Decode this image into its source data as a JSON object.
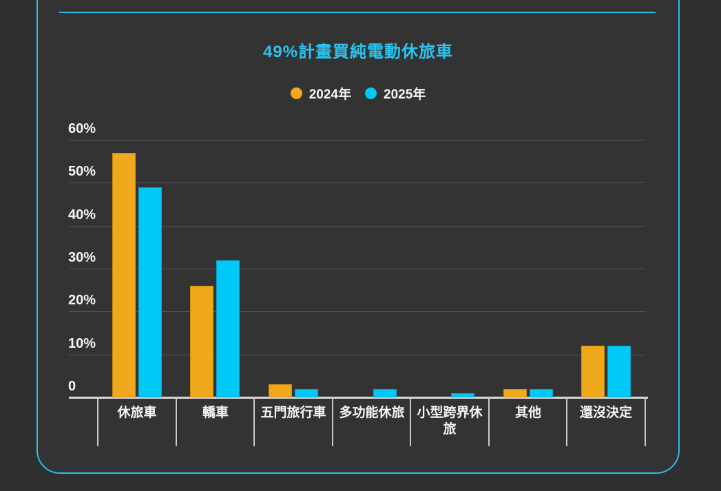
{
  "title": "49%計畫買純電動休旅車",
  "colors": {
    "background": "#2f2f2f",
    "panel": "#333333",
    "accent_border": "#29bfe9",
    "title_text": "#2ac4f2",
    "gridline": "#575757",
    "axis_line": "#d9d9d9",
    "label_text": "#f5f5f5",
    "bar_2024": "#f0a81c",
    "bar_2025": "#00c8f8"
  },
  "legend": {
    "items": [
      {
        "label": "2024年",
        "color": "#f0a81c"
      },
      {
        "label": "2025年",
        "color": "#00c8f8"
      }
    ]
  },
  "chart_data": {
    "type": "bar",
    "title": "49%計畫買純電動休旅車",
    "categories": [
      "休旅車",
      "轎車",
      "五門旅行車",
      "多功能休旅",
      "小型跨界休旅",
      "其他",
      "還沒決定"
    ],
    "series": [
      {
        "name": "2024年",
        "color": "#f0a81c",
        "border": "#d18f0d",
        "values": [
          57,
          26,
          3,
          0,
          0,
          2,
          12
        ]
      },
      {
        "name": "2025年",
        "color": "#00c8f8",
        "border": "#0ba3cd",
        "values": [
          49,
          32,
          2,
          2,
          1,
          2,
          12
        ]
      }
    ],
    "xlabel": "",
    "ylabel": "",
    "ylim": [
      0,
      60
    ],
    "yticks": [
      {
        "value": 60,
        "label": "60%"
      },
      {
        "value": 50,
        "label": "50%"
      },
      {
        "value": 40,
        "label": "40%"
      },
      {
        "value": 30,
        "label": "30%"
      },
      {
        "value": 20,
        "label": "20%"
      },
      {
        "value": 10,
        "label": "10%"
      },
      {
        "value": 0,
        "label": "0"
      }
    ],
    "grid": true,
    "legend_position": "top"
  }
}
